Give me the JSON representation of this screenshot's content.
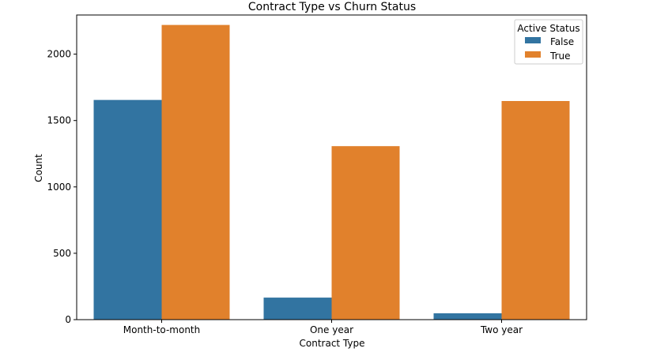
{
  "chart_data": {
    "type": "bar",
    "title": "Contract Type vs Churn Status",
    "xlabel": "Contract Type",
    "ylabel": "Count",
    "categories": [
      "Month-to-month",
      "One year",
      "Two year"
    ],
    "series": [
      {
        "name": "False",
        "values": [
          1655,
          166,
          48
        ],
        "color": "#3274a1"
      },
      {
        "name": "True",
        "values": [
          2220,
          1307,
          1647
        ],
        "color": "#e1812c"
      }
    ],
    "ylim": [
      0,
      2295
    ],
    "yticks": [
      0,
      500,
      1000,
      1500,
      2000
    ],
    "grid": false,
    "legend": {
      "title": "Active Status",
      "placement": "top-right"
    }
  }
}
